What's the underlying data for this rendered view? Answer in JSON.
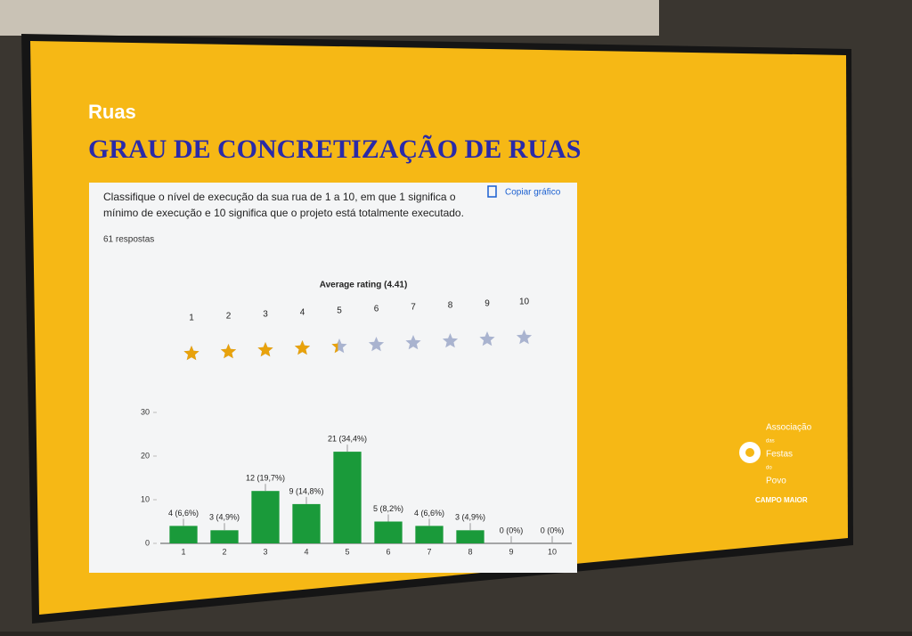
{
  "section": "Ruas",
  "heading": "GRAU DE CONCRETIZAÇÃO DE RUAS",
  "question": [
    "Classifique o nível de execução da sua rua de 1 a 10, em que 1 significa o",
    "mínimo de execução e 10 significa que o projeto está totalmente executado."
  ],
  "responses": "61 respostas",
  "copy_button": "Copiar gráfico",
  "logo": {
    "lines": [
      "Associação",
      "das",
      "Festas",
      "do",
      "Povo"
    ],
    "place": "CAMPO MAIOR"
  },
  "chart_data": {
    "type": "bar",
    "title": "Average rating (4.41)",
    "average_rating": 4.41,
    "rating_levels": [
      1,
      2,
      3,
      4,
      5,
      6,
      7,
      8,
      9,
      10
    ],
    "categories": [
      "1",
      "2",
      "3",
      "4",
      "5",
      "6",
      "7",
      "8",
      "9",
      "10"
    ],
    "values": [
      4,
      3,
      12,
      9,
      21,
      5,
      4,
      3,
      0,
      0
    ],
    "value_labels": [
      "4 (6,6%)",
      "3 (4,9%)",
      "12 (19,7%)",
      "9 (14,8%)",
      "21 (34,4%)",
      "5 (8,2%)",
      "4 (6,6%)",
      "3 (4,9%)",
      "0 (0%)",
      "0 (0%)"
    ],
    "color": "#1a9a3a",
    "star_color": "#e8a20c",
    "ylim": [
      0,
      30
    ],
    "yticks": [
      0,
      10,
      20,
      30
    ]
  }
}
